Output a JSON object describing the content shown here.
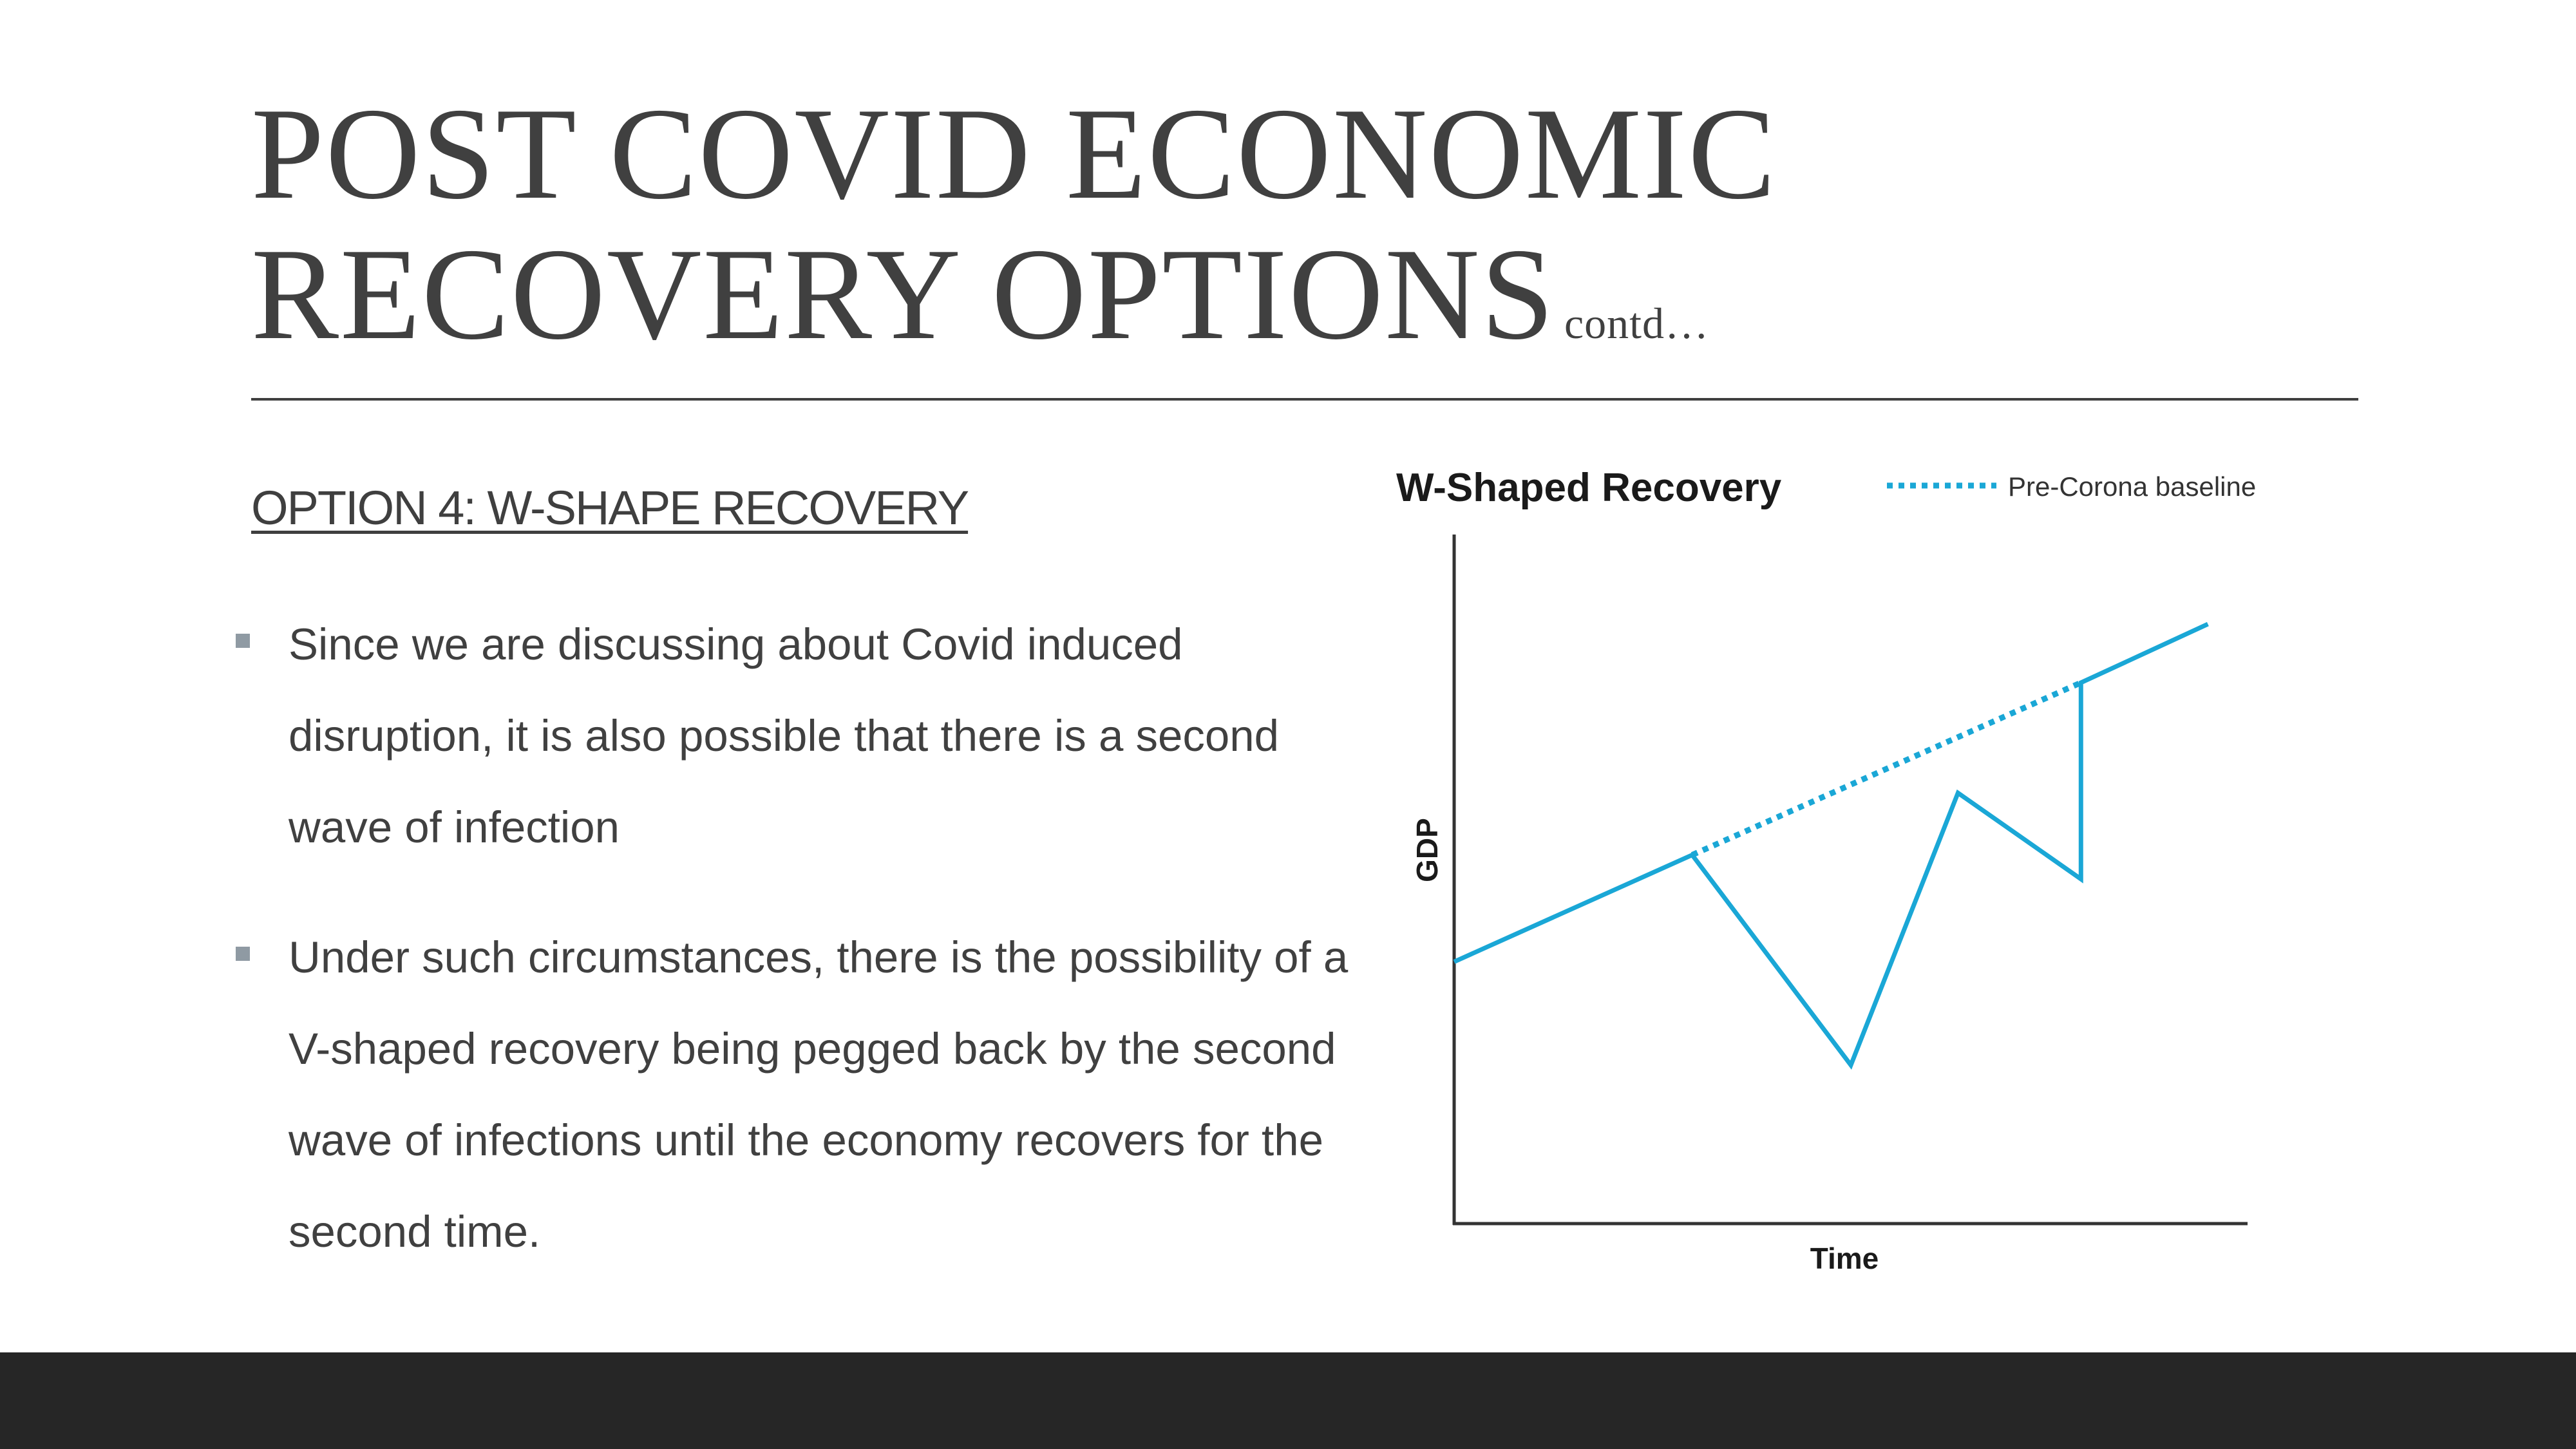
{
  "slide": {
    "title_line1": "POST COVID ECONOMIC",
    "title_line2": "RECOVERY OPTIONS",
    "title_suffix": "contd…",
    "subtitle": "OPTION 4: W-SHAPE RECOVERY",
    "bullets": [
      "Since we are discussing about Covid induced disruption, it is also possible that there is a second wave of infection",
      "Under such circumstances, there is the possibility of a V-shaped recovery being pegged back by the second wave of infections until the economy recovers for the second time."
    ]
  },
  "chart_data": {
    "type": "line",
    "title": "W-Shaped Recovery",
    "xlabel": "Time",
    "ylabel": "GDP",
    "legend_position": "top-right",
    "grid": false,
    "xlim": [
      0,
      100
    ],
    "ylim": [
      0,
      100
    ],
    "series": [
      {
        "name": "",
        "style": "solid",
        "color": "#1aa7d6",
        "x": [
          0,
          30,
          50,
          63.5,
          79,
          79,
          95
        ],
        "y": [
          38,
          53.5,
          23,
          62.5,
          50,
          78.5,
          87
        ]
      },
      {
        "name": "Pre-Corona baseline",
        "style": "dotted",
        "color": "#1aa7d6",
        "x": [
          30,
          79
        ],
        "y": [
          53.5,
          78.5
        ]
      }
    ]
  }
}
